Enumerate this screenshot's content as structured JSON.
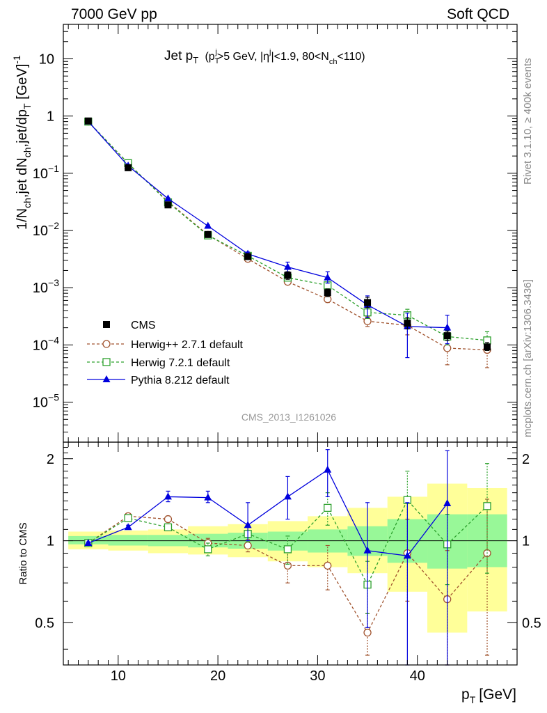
{
  "header": {
    "left": "7000 GeV pp",
    "right": "Soft QCD"
  },
  "side_labels": {
    "rivet": "Rivet 3.1.10, ≥ 400k events",
    "mcplots": "mcplots.cern.ch [arXiv:1306.3436]"
  },
  "colors": {
    "cms": "#000000",
    "herwigpp": "#a0522d",
    "herwig7": "#2ca02c",
    "pythia": "#0000dd",
    "band_inner": "#98f898",
    "band_outer": "#ffff99"
  },
  "chart_data": [
    {
      "id": "main",
      "type": "scatter",
      "title": "Jet p_T (p_T^j>5 GeV, |η^j|<1.9, 80<N_ch<110)",
      "title_parts": {
        "main": "Jet p",
        "sub_T": "T",
        "cuts": "(p",
        "cut1": ">5 GeV, |η",
        "cut2": "|<1.9, 80<N",
        "cut3": "<110)",
        "sub_j": "j",
        "sub_ch": "ch"
      },
      "ylabel": "1/N_ch,jet dN_ch,jet/dp_T [GeV]^-1",
      "ylabel_text": "1/N",
      "yscale": "log",
      "xlim": [
        4.5,
        50
      ],
      "ylim": [
        2e-06,
        40
      ],
      "yticks": [
        {
          "value": 10,
          "label": "10"
        },
        {
          "value": 1,
          "label": "1"
        },
        {
          "value": 0.1,
          "label": "10",
          "exp": "−1"
        },
        {
          "value": 0.01,
          "label": "10",
          "exp": "−2"
        },
        {
          "value": 0.001,
          "label": "10",
          "exp": "−3"
        },
        {
          "value": 0.0001,
          "label": "10",
          "exp": "−4"
        },
        {
          "value": 1e-05,
          "label": "10",
          "exp": "−5"
        }
      ],
      "watermark": "CMS_2013_I1261026",
      "legend_position": "bottom-left",
      "x": [
        7,
        11,
        15,
        19,
        23,
        27,
        31,
        35,
        39,
        43,
        47
      ],
      "series": [
        {
          "name": "CMS",
          "key": "cms",
          "marker": "filled-square",
          "values": [
            0.82,
            0.125,
            0.028,
            0.0085,
            0.0035,
            0.00165,
            0.00082,
            0.00055,
            0.00024,
            0.000145,
            9.2e-05
          ],
          "err_lo": [
            0.78,
            0.115,
            0.025,
            0.0078,
            0.0032,
            0.0014,
            0.0007,
            0.00045,
            0.00019,
            0.00012,
            8e-05
          ],
          "err_hi": [
            0.86,
            0.135,
            0.031,
            0.0093,
            0.0038,
            0.0019,
            0.00095,
            0.00068,
            0.0003,
            0.000175,
            0.00011
          ]
        },
        {
          "name": "Herwig++ 2.7.1 default",
          "key": "herwigpp",
          "marker": "open-circle",
          "values": [
            0.8,
            0.148,
            0.032,
            0.0084,
            0.0032,
            0.00127,
            0.00063,
            0.00026,
            0.00022,
            8.8e-05,
            8.2e-05
          ],
          "err_lo": [
            0.79,
            0.146,
            0.031,
            0.0081,
            0.003,
            0.00115,
            0.00055,
            0.00021,
            0.00015,
            4.5e-05,
            4e-05
          ],
          "err_hi": [
            0.81,
            0.15,
            0.033,
            0.0087,
            0.0034,
            0.0014,
            0.00071,
            0.00031,
            0.0003,
            0.00014,
            0.00013
          ]
        },
        {
          "name": "Herwig 7.2.1 default",
          "key": "herwig7",
          "marker": "open-square",
          "values": [
            0.8,
            0.15,
            0.031,
            0.0082,
            0.0036,
            0.0015,
            0.0011,
            0.00037,
            0.00033,
            0.00014,
            0.00012
          ],
          "err_lo": [
            0.79,
            0.148,
            0.03,
            0.0079,
            0.0034,
            0.00135,
            0.00095,
            0.00029,
            0.00024,
            0.0001,
            8e-05
          ],
          "err_hi": [
            0.81,
            0.152,
            0.032,
            0.0085,
            0.0038,
            0.00165,
            0.00125,
            0.00045,
            0.00042,
            0.00018,
            0.00017
          ]
        },
        {
          "name": "Pythia 8.212 default",
          "key": "pythia",
          "marker": "filled-triangle",
          "values": [
            0.8,
            0.135,
            0.036,
            0.012,
            0.0039,
            0.0023,
            0.0015,
            0.0005,
            0.00021,
            0.0002,
            null
          ],
          "err_lo": [
            0.79,
            0.133,
            0.035,
            0.0115,
            0.0036,
            0.0019,
            0.0012,
            0.0003,
            6e-05,
            0.000105,
            null
          ],
          "err_hi": [
            0.81,
            0.137,
            0.037,
            0.0125,
            0.0042,
            0.0028,
            0.0019,
            0.00072,
            0.00036,
            0.00033,
            null
          ]
        }
      ]
    },
    {
      "id": "ratio",
      "type": "line",
      "ylabel": "Ratio to CMS",
      "xlabel": "p_T [GeV]",
      "xlabel_text": "p",
      "xlabel_sub": "T",
      "xlabel_unit": "[GeV]",
      "xlim": [
        4.5,
        50
      ],
      "ylim": [
        0.35,
        2.3
      ],
      "yscale": "log",
      "yticks": [
        {
          "value": 0.5,
          "label": "0.5"
        },
        {
          "value": 1,
          "label": "1"
        },
        {
          "value": 2,
          "label": "2"
        }
      ],
      "xticks": [
        {
          "value": 10,
          "label": "10"
        },
        {
          "value": 20,
          "label": "20"
        },
        {
          "value": 30,
          "label": "30"
        },
        {
          "value": 40,
          "label": "40"
        }
      ],
      "bin_edges": [
        5,
        9,
        13,
        17,
        21,
        25,
        29,
        33,
        37,
        41,
        45,
        49
      ],
      "band_inner": [
        [
          0.97,
          1.04
        ],
        [
          0.96,
          1.05
        ],
        [
          0.955,
          1.05
        ],
        [
          0.945,
          1.06
        ],
        [
          0.935,
          1.07
        ],
        [
          0.92,
          1.08
        ],
        [
          0.905,
          1.1
        ],
        [
          0.88,
          1.13
        ],
        [
          0.83,
          1.2
        ],
        [
          0.79,
          1.25
        ],
        [
          0.8,
          1.25
        ]
      ],
      "band_outer": [
        [
          0.93,
          1.08
        ],
        [
          0.92,
          1.09
        ],
        [
          0.9,
          1.1
        ],
        [
          0.89,
          1.13
        ],
        [
          0.87,
          1.15
        ],
        [
          0.84,
          1.18
        ],
        [
          0.8,
          1.23
        ],
        [
          0.76,
          1.32
        ],
        [
          0.65,
          1.45
        ],
        [
          0.46,
          1.62
        ],
        [
          0.55,
          1.56
        ]
      ],
      "x": [
        7,
        11,
        15,
        19,
        23,
        27,
        31,
        35,
        39,
        43,
        47
      ],
      "series": [
        {
          "name": "Herwig++ 2.7.1 default",
          "key": "herwigpp",
          "marker": "open-circle",
          "values": [
            0.98,
            1.23,
            1.2,
            0.98,
            0.96,
            0.81,
            0.81,
            0.46,
            0.9,
            0.61,
            0.9
          ],
          "err_lo": [
            0.97,
            1.2,
            1.17,
            0.94,
            0.91,
            0.7,
            0.66,
            0.38,
            0.6,
            0.3,
            0.38
          ],
          "err_hi": [
            0.99,
            1.26,
            1.23,
            1.02,
            1.01,
            0.92,
            0.96,
            0.54,
            1.2,
            0.92,
            1.42
          ]
        },
        {
          "name": "Herwig 7.2.1 default",
          "key": "herwig7",
          "marker": "open-square",
          "values": [
            0.98,
            1.21,
            1.12,
            0.93,
            1.06,
            0.93,
            1.32,
            0.69,
            1.41,
            0.97,
            1.34
          ],
          "err_lo": [
            0.97,
            1.18,
            1.09,
            0.88,
            0.99,
            0.82,
            1.14,
            0.54,
            1.0,
            0.69,
            0.76
          ],
          "err_hi": [
            0.99,
            1.24,
            1.15,
            0.98,
            1.13,
            1.04,
            1.5,
            0.84,
            1.8,
            1.25,
            1.92
          ]
        },
        {
          "name": "Pythia 8.212 default",
          "key": "pythia",
          "marker": "filled-triangle",
          "values": [
            0.98,
            1.12,
            1.45,
            1.44,
            1.14,
            1.45,
            1.82,
            0.92,
            0.88,
            1.37,
            null
          ],
          "err_lo": [
            0.97,
            1.1,
            1.39,
            1.38,
            1.0,
            1.2,
            1.45,
            0.48,
            0.25,
            0.25,
            null
          ],
          "err_hi": [
            0.99,
            1.14,
            1.52,
            1.52,
            1.38,
            1.72,
            2.16,
            1.38,
            1.38,
            2.14,
            null
          ]
        }
      ]
    }
  ]
}
